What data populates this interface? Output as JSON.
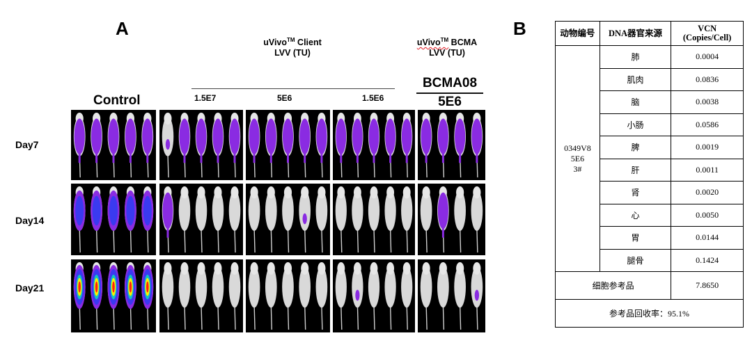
{
  "panel_a": {
    "letter": "A",
    "client_header": {
      "line1_a": "uVivo",
      "line1_tm": "TM",
      "line1_b": " Client",
      "line2": "LVV (TU)"
    },
    "bcma_header": {
      "line1_a": "uVivo",
      "line1_tm": "TM",
      "line1_b": " BCMA",
      "line2": "LVV (TU)"
    },
    "control_label": "Control",
    "bcma_group": {
      "name": "BCMA08",
      "dose": "5E6"
    },
    "doses": [
      "1.5E7",
      "5E6",
      "1.5E6"
    ],
    "days": [
      "Day7",
      "Day14",
      "Day21"
    ],
    "groups": [
      {
        "group": "control",
        "mice": 5
      },
      {
        "group": "1.5E7",
        "mice": 5
      },
      {
        "group": "5E6",
        "mice": 5
      },
      {
        "group": "1.5E6",
        "mice": 5
      },
      {
        "group": "BCMA08",
        "mice": 4
      }
    ]
  },
  "panel_b": {
    "letter": "B",
    "headers": {
      "animal_id": "动物编号",
      "source": "DNA器官来源",
      "vcn_line1": "VCN",
      "vcn_line2": "(Copies/Cell)"
    },
    "animal": {
      "line1": "0349V8",
      "line2": "5E6",
      "line3": "3#"
    },
    "rows": [
      {
        "organ": "肺",
        "vcn": "0.0004"
      },
      {
        "organ": "肌肉",
        "vcn": "0.0836"
      },
      {
        "organ": "脑",
        "vcn": "0.0038"
      },
      {
        "organ": "小肠",
        "vcn": "0.0586"
      },
      {
        "organ": "脾",
        "vcn": "0.0019"
      },
      {
        "organ": "肝",
        "vcn": "0.0011"
      },
      {
        "organ": "肾",
        "vcn": "0.0020"
      },
      {
        "organ": "心",
        "vcn": "0.0050"
      },
      {
        "organ": "胃",
        "vcn": "0.0144"
      },
      {
        "organ": "腿骨",
        "vcn": "0.1424"
      }
    ],
    "reference": {
      "label": "细胞参考品",
      "value": "7.8650"
    },
    "recovery": "参考品回收率：95.1%"
  },
  "colors": {
    "signal_purple": "#8a2be2",
    "signal_blue": "#3a3af0",
    "signal_red": "#ff2010",
    "signal_yellow": "#ffee00",
    "background": "#000000"
  }
}
